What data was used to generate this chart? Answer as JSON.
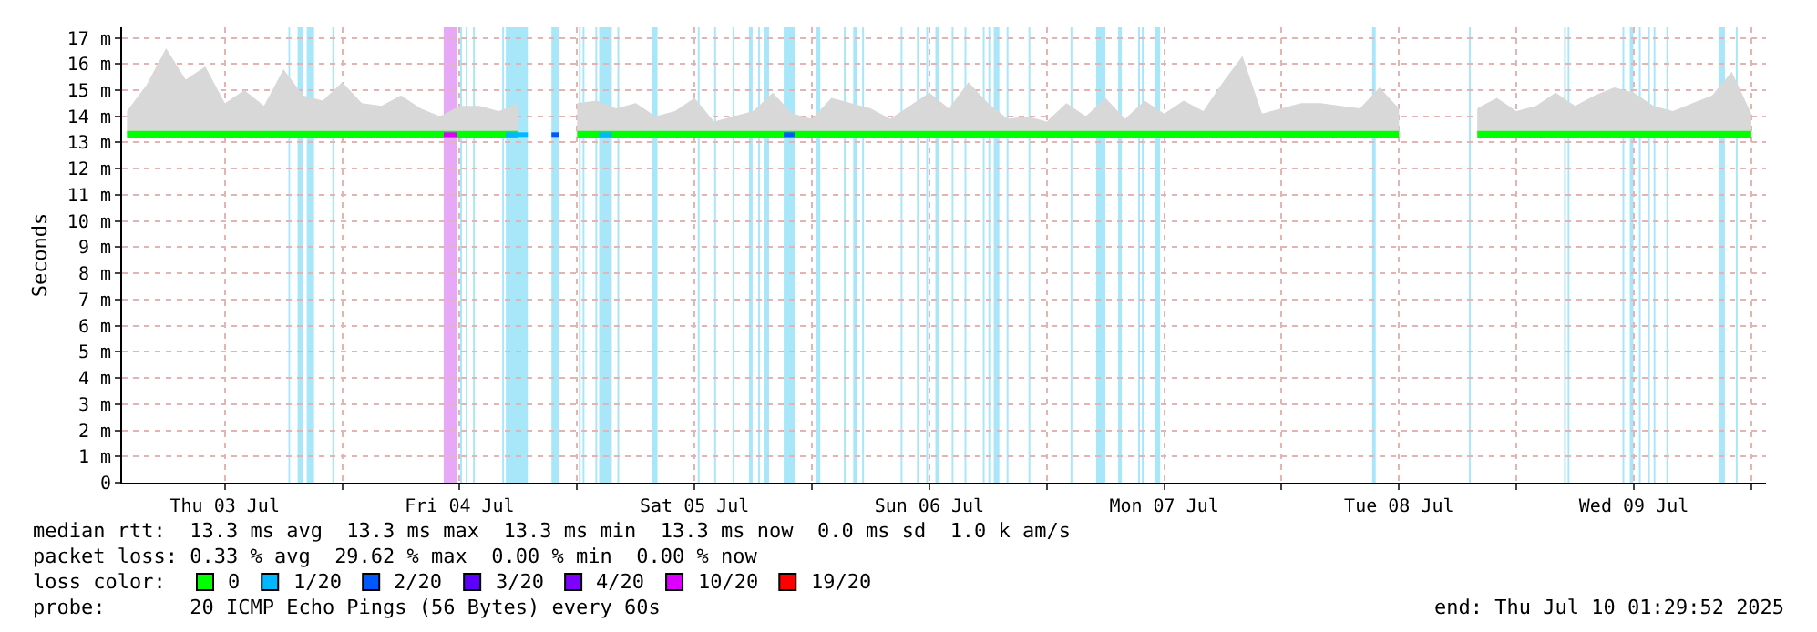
{
  "chart_data": {
    "type": "line",
    "ylabel": "Seconds",
    "legend_title": "loss color:",
    "legend": "bottom",
    "grid": true,
    "xlim": [
      "2025-07-03T01:30",
      "2025-07-10T01:30"
    ],
    "xticks": [
      {
        "value": "2025-07-03T12:00",
        "label": "Thu 03 Jul"
      },
      {
        "value": "2025-07-04T00:00",
        "label": null
      },
      {
        "value": "2025-07-04T12:00",
        "label": "Fri 04 Jul"
      },
      {
        "value": "2025-07-05T00:00",
        "label": null
      },
      {
        "value": "2025-07-05T12:00",
        "label": "Sat 05 Jul"
      },
      {
        "value": "2025-07-06T00:00",
        "label": null
      },
      {
        "value": "2025-07-06T12:00",
        "label": "Sun 06 Jul"
      },
      {
        "value": "2025-07-07T00:00",
        "label": null
      },
      {
        "value": "2025-07-07T12:00",
        "label": "Mon 07 Jul"
      },
      {
        "value": "2025-07-08T00:00",
        "label": null
      },
      {
        "value": "2025-07-08T12:00",
        "label": "Tue 08 Jul"
      },
      {
        "value": "2025-07-09T00:00",
        "label": null
      },
      {
        "value": "2025-07-09T12:00",
        "label": "Wed 09 Jul"
      },
      {
        "value": "2025-07-10T00:00",
        "label": null
      }
    ],
    "ylim": [
      0,
      17.4
    ],
    "yticks": [
      0,
      {
        "value": 1,
        "label": "1 m"
      },
      {
        "value": 2,
        "label": "2 m"
      },
      {
        "value": 3,
        "label": "3 m"
      },
      {
        "value": 4,
        "label": "4 m"
      },
      {
        "value": 5,
        "label": "5 m"
      },
      {
        "value": 6,
        "label": "6 m"
      },
      {
        "value": 7,
        "label": "7 m"
      },
      {
        "value": 8,
        "label": "8 m"
      },
      {
        "value": 9,
        "label": "9 m"
      },
      {
        "value": 10,
        "label": "10 m"
      },
      {
        "value": 11,
        "label": "11 m"
      },
      {
        "value": 12,
        "label": "12 m"
      },
      {
        "value": 13,
        "label": "13 m"
      },
      {
        "value": 14,
        "label": "14 m"
      },
      {
        "value": 15,
        "label": "15 m"
      },
      {
        "value": 16,
        "label": "16 m"
      },
      {
        "value": 17,
        "label": "17 m"
      }
    ],
    "series": [
      {
        "name": "0",
        "color": "#00ff00",
        "x": [
          "2025-07-03T02:00",
          "2025-07-03T04:00",
          "2025-07-03T06:00",
          "2025-07-03T08:00",
          "2025-07-03T10:00",
          "2025-07-03T12:00",
          "2025-07-03T14:00",
          "2025-07-03T16:00",
          "2025-07-03T18:00",
          "2025-07-03T20:00",
          "2025-07-03T22:00",
          "2025-07-04T00:00",
          "2025-07-04T02:00",
          "2025-07-04T04:00",
          "2025-07-04T06:00",
          "2025-07-04T08:00",
          "2025-07-04T10:00",
          "2025-07-04T12:00",
          "2025-07-04T14:00",
          "2025-07-04T16:00",
          "2025-07-04T18:00",
          "2025-07-04T20:00",
          "2025-07-04T22:00",
          "2025-07-05T00:00",
          "2025-07-05T02:00",
          "2025-07-05T04:00",
          "2025-07-05T06:00",
          "2025-07-05T08:00",
          "2025-07-05T10:00",
          "2025-07-05T12:00",
          "2025-07-05T14:00",
          "2025-07-05T16:00",
          "2025-07-05T18:00",
          "2025-07-05T20:00",
          "2025-07-05T22:00",
          "2025-07-06T00:00",
          "2025-07-06T02:00",
          "2025-07-06T04:00",
          "2025-07-06T06:00",
          "2025-07-06T08:00",
          "2025-07-06T10:00",
          "2025-07-06T12:00",
          "2025-07-06T14:00",
          "2025-07-06T16:00",
          "2025-07-06T18:00",
          "2025-07-06T20:00",
          "2025-07-06T22:00",
          "2025-07-07T00:00",
          "2025-07-07T02:00",
          "2025-07-07T04:00",
          "2025-07-07T06:00",
          "2025-07-07T08:00",
          "2025-07-07T10:00",
          "2025-07-07T12:00",
          "2025-07-07T14:00",
          "2025-07-07T16:00",
          "2025-07-07T18:00",
          "2025-07-07T20:00",
          "2025-07-07T22:00",
          "2025-07-08T00:00",
          "2025-07-08T02:00",
          "2025-07-08T04:00",
          "2025-07-08T06:00",
          "2025-07-08T08:00",
          "2025-07-08T10:00",
          "2025-07-08T12:00",
          "2025-07-08T14:00",
          "2025-07-08T16:00",
          "2025-07-08T18:00",
          "2025-07-08T20:00",
          "2025-07-08T22:00",
          "2025-07-09T00:00",
          "2025-07-09T02:00",
          "2025-07-09T04:00",
          "2025-07-09T06:00",
          "2025-07-09T08:00",
          "2025-07-09T10:00",
          "2025-07-09T12:00",
          "2025-07-09T14:00",
          "2025-07-09T16:00",
          "2025-07-09T18:00",
          "2025-07-09T20:00",
          "2025-07-09T22:00",
          "2025-07-10T00:00"
        ],
        "values": [
          13.3,
          13.3,
          13.3,
          13.3,
          13.3,
          13.3,
          13.3,
          13.3,
          13.3,
          13.3,
          13.3,
          13.3,
          13.3,
          13.3,
          13.3,
          13.3,
          13.3,
          13.3,
          13.3,
          13.3,
          13.3,
          null,
          null,
          13.3,
          13.3,
          13.3,
          13.3,
          13.3,
          13.3,
          13.3,
          13.3,
          13.3,
          13.3,
          13.3,
          13.3,
          13.3,
          13.3,
          13.3,
          13.3,
          13.3,
          13.3,
          13.3,
          13.3,
          13.3,
          13.3,
          13.3,
          13.3,
          13.3,
          13.3,
          13.3,
          13.3,
          13.3,
          13.3,
          13.3,
          13.3,
          13.3,
          13.3,
          13.3,
          13.3,
          13.3,
          13.3,
          13.3,
          13.3,
          13.3,
          13.3,
          13.3,
          null,
          null,
          null,
          13.3,
          13.3,
          13.3,
          13.3,
          13.3,
          13.3,
          13.3,
          13.3,
          13.3,
          13.3,
          13.3,
          13.3,
          13.3,
          13.3,
          13.3
        ],
        "lower": [
          13.3,
          13.3,
          13.3,
          13.3,
          13.3,
          13.3,
          13.3,
          13.3,
          13.3,
          13.3,
          13.3,
          13.3,
          13.3,
          13.3,
          13.3,
          13.3,
          13.3,
          13.3,
          13.3,
          13.3,
          13.3,
          null,
          null,
          13.3,
          13.3,
          13.3,
          13.3,
          13.3,
          13.3,
          13.3,
          13.3,
          13.3,
          13.3,
          13.3,
          13.3,
          13.3,
          13.3,
          13.3,
          13.3,
          13.3,
          13.3,
          13.3,
          13.3,
          13.3,
          13.3,
          13.3,
          13.3,
          13.3,
          13.3,
          13.3,
          13.3,
          13.3,
          13.3,
          13.3,
          13.3,
          13.3,
          13.3,
          13.3,
          13.3,
          13.3,
          13.3,
          13.3,
          13.3,
          13.3,
          13.3,
          13.3,
          null,
          null,
          null,
          13.3,
          13.3,
          13.3,
          13.3,
          13.3,
          13.3,
          13.3,
          13.3,
          13.3,
          13.3,
          13.3,
          13.3,
          13.3,
          13.3,
          13.3
        ],
        "upper": [
          14.2,
          15.2,
          16.6,
          15.4,
          15.9,
          14.5,
          15.0,
          14.4,
          15.8,
          14.8,
          14.6,
          15.3,
          14.5,
          14.4,
          14.8,
          14.3,
          14.0,
          14.4,
          14.4,
          14.2,
          14.5,
          null,
          null,
          14.5,
          14.6,
          14.3,
          14.5,
          14.0,
          14.2,
          14.7,
          13.8,
          14.0,
          14.2,
          14.9,
          14.1,
          13.9,
          14.7,
          14.5,
          14.3,
          13.9,
          14.4,
          14.9,
          14.3,
          15.3,
          14.5,
          13.9,
          14.0,
          13.8,
          14.5,
          14.0,
          14.7,
          13.9,
          14.6,
          14.1,
          14.6,
          14.2,
          15.3,
          16.3,
          14.1,
          14.3,
          14.5,
          14.5,
          14.4,
          14.3,
          15.1,
          14.3,
          null,
          null,
          null,
          14.3,
          14.7,
          14.2,
          14.4,
          14.9,
          14.4,
          14.8,
          15.1,
          14.9,
          14.4,
          14.2,
          14.5,
          14.8,
          15.7,
          14.1
        ]
      },
      {
        "name": "1/20",
        "color": "#00b8ff",
        "x": [
          "2025-07-04T16:43",
          "2025-07-04T18:58",
          "2025-07-04T18:59",
          "2025-07-05T02:15",
          "2025-07-05T03:33"
        ],
        "values": [
          13.3,
          13.3,
          null,
          13.3,
          13.3
        ]
      },
      {
        "name": "2/20",
        "color": "#0059ff",
        "x": [
          "2025-07-04T21:23",
          "2025-07-04T22:08",
          "2025-07-04T22:09",
          "2025-07-05T21:07",
          "2025-07-05T22:14"
        ],
        "values": [
          13.3,
          13.3,
          null,
          13.3,
          13.3
        ]
      },
      {
        "name": "3/20",
        "color": "#5e00ff"
      },
      {
        "name": "4/20",
        "color": "#7e00ff"
      },
      {
        "name": "10/20",
        "color": "#dd00ff",
        "x": [
          "2025-07-04T10:22",
          "2025-07-04T11:41"
        ],
        "values": [
          13.3,
          13.3
        ]
      },
      {
        "name": "19/20",
        "color": "#ff0000"
      }
    ],
    "bands": [
      {
        "axis": "x",
        "from": "2025-07-03T18:30",
        "to": "2025-07-03T18:40",
        "color": "#a8e6fa"
      },
      {
        "axis": "x",
        "from": "2025-07-03T19:26",
        "to": "2025-07-03T20:00",
        "color": "#a8e6fa"
      },
      {
        "axis": "x",
        "from": "2025-07-03T20:22",
        "to": "2025-07-03T21:07",
        "color": "#a8e6fa"
      },
      {
        "axis": "x",
        "from": "2025-07-03T22:59",
        "to": "2025-07-03T23:10",
        "color": "#a8e6fa"
      },
      {
        "axis": "x",
        "from": "2025-07-04T10:22",
        "to": "2025-07-04T11:41",
        "color": "#e8a8f8"
      },
      {
        "axis": "x",
        "from": "2025-07-04T12:03",
        "to": "2025-07-04T12:14",
        "color": "#a8e6fa"
      },
      {
        "axis": "x",
        "from": "2025-07-04T12:37",
        "to": "2025-07-04T12:48",
        "color": "#a8e6fa"
      },
      {
        "axis": "x",
        "from": "2025-07-04T13:22",
        "to": "2025-07-04T13:33",
        "color": "#a8e6fa"
      },
      {
        "axis": "x",
        "from": "2025-07-04T16:21",
        "to": "2025-07-04T16:32",
        "color": "#a8e6fa"
      },
      {
        "axis": "x",
        "from": "2025-07-04T16:43",
        "to": "2025-07-04T18:58",
        "color": "#a8e6fa"
      },
      {
        "axis": "x",
        "from": "2025-07-04T21:23",
        "to": "2025-07-04T22:08",
        "color": "#a8e6fa"
      },
      {
        "axis": "x",
        "from": "2025-07-05T00:11",
        "to": "2025-07-05T00:22",
        "color": "#a8e6fa"
      },
      {
        "axis": "x",
        "from": "2025-07-05T00:34",
        "to": "2025-07-05T00:45",
        "color": "#a8e6fa"
      },
      {
        "axis": "x",
        "from": "2025-07-05T01:52",
        "to": "2025-07-05T02:03",
        "color": "#a8e6fa"
      },
      {
        "axis": "x",
        "from": "2025-07-05T02:15",
        "to": "2025-07-05T03:33",
        "color": "#a8e6fa"
      },
      {
        "axis": "x",
        "from": "2025-07-05T04:07",
        "to": "2025-07-05T04:18",
        "color": "#a8e6fa"
      },
      {
        "axis": "x",
        "from": "2025-07-05T07:40",
        "to": "2025-07-05T08:13",
        "color": "#a8e6fa"
      },
      {
        "axis": "x",
        "from": "2025-07-05T12:20",
        "to": "2025-07-05T12:31",
        "color": "#a8e6fa"
      },
      {
        "axis": "x",
        "from": "2025-07-05T14:01",
        "to": "2025-07-05T14:12",
        "color": "#a8e6fa"
      },
      {
        "axis": "x",
        "from": "2025-07-05T15:53",
        "to": "2025-07-05T16:04",
        "color": "#a8e6fa"
      },
      {
        "axis": "x",
        "from": "2025-07-05T17:34",
        "to": "2025-07-05T17:56",
        "color": "#a8e6fa"
      },
      {
        "axis": "x",
        "from": "2025-07-05T18:30",
        "to": "2025-07-05T18:41",
        "color": "#a8e6fa"
      },
      {
        "axis": "x",
        "from": "2025-07-05T19:04",
        "to": "2025-07-05T19:37",
        "color": "#a8e6fa"
      },
      {
        "axis": "x",
        "from": "2025-07-05T21:07",
        "to": "2025-07-05T22:14",
        "color": "#a8e6fa"
      },
      {
        "axis": "x",
        "from": "2025-07-06T00:28",
        "to": "2025-07-06T00:51",
        "color": "#a8e6fa"
      },
      {
        "axis": "x",
        "from": "2025-07-06T03:16",
        "to": "2025-07-06T03:27",
        "color": "#a8e6fa"
      },
      {
        "axis": "x",
        "from": "2025-07-06T04:13",
        "to": "2025-07-06T04:35",
        "color": "#a8e6fa"
      },
      {
        "axis": "x",
        "from": "2025-07-06T05:08",
        "to": "2025-07-06T05:19",
        "color": "#a8e6fa"
      },
      {
        "axis": "x",
        "from": "2025-07-06T09:04",
        "to": "2025-07-06T09:15",
        "color": "#a8e6fa"
      },
      {
        "axis": "x",
        "from": "2025-07-06T10:44",
        "to": "2025-07-06T10:55",
        "color": "#a8e6fa"
      },
      {
        "axis": "x",
        "from": "2025-07-06T11:41",
        "to": "2025-07-06T11:52",
        "color": "#a8e6fa"
      },
      {
        "axis": "x",
        "from": "2025-07-06T12:37",
        "to": "2025-07-06T12:59",
        "color": "#a8e6fa"
      },
      {
        "axis": "x",
        "from": "2025-07-06T14:17",
        "to": "2025-07-06T14:28",
        "color": "#a8e6fa"
      },
      {
        "axis": "x",
        "from": "2025-07-06T15:36",
        "to": "2025-07-06T15:47",
        "color": "#a8e6fa"
      },
      {
        "axis": "x",
        "from": "2025-07-06T17:28",
        "to": "2025-07-06T17:39",
        "color": "#a8e6fa"
      },
      {
        "axis": "x",
        "from": "2025-07-06T18:02",
        "to": "2025-07-06T18:13",
        "color": "#a8e6fa"
      },
      {
        "axis": "x",
        "from": "2025-07-06T18:35",
        "to": "2025-07-06T19:09",
        "color": "#a8e6fa"
      },
      {
        "axis": "x",
        "from": "2025-07-06T19:54",
        "to": "2025-07-06T20:05",
        "color": "#a8e6fa"
      },
      {
        "axis": "x",
        "from": "2025-07-06T22:08",
        "to": "2025-07-06T22:19",
        "color": "#a8e6fa"
      },
      {
        "axis": "x",
        "from": "2025-07-07T02:26",
        "to": "2025-07-07T02:37",
        "color": "#a8e6fa"
      },
      {
        "axis": "x",
        "from": "2025-07-07T05:03",
        "to": "2025-07-07T05:59",
        "color": "#a8e6fa"
      },
      {
        "axis": "x",
        "from": "2025-07-07T07:17",
        "to": "2025-07-07T07:40",
        "color": "#a8e6fa"
      },
      {
        "axis": "x",
        "from": "2025-07-07T09:20",
        "to": "2025-07-07T09:31",
        "color": "#a8e6fa"
      },
      {
        "axis": "x",
        "from": "2025-07-07T09:43",
        "to": "2025-07-07T09:54",
        "color": "#a8e6fa"
      },
      {
        "axis": "x",
        "from": "2025-07-07T11:02",
        "to": "2025-07-07T11:35",
        "color": "#a8e6fa"
      },
      {
        "axis": "x",
        "from": "2025-07-08T09:15",
        "to": "2025-07-08T09:37",
        "color": "#a8e6fa"
      },
      {
        "axis": "x",
        "from": "2025-07-08T19:09",
        "to": "2025-07-08T19:20",
        "color": "#a8e6fa"
      },
      {
        "axis": "x",
        "from": "2025-07-09T04:52",
        "to": "2025-07-09T05:03",
        "color": "#a8e6fa"
      },
      {
        "axis": "x",
        "from": "2025-07-09T05:14",
        "to": "2025-07-09T05:25",
        "color": "#a8e6fa"
      },
      {
        "axis": "x",
        "from": "2025-07-09T10:50",
        "to": "2025-07-09T11:01",
        "color": "#a8e6fa"
      },
      {
        "axis": "x",
        "from": "2025-07-09T11:35",
        "to": "2025-07-09T11:57",
        "color": "#a8e6fa"
      },
      {
        "axis": "x",
        "from": "2025-07-09T12:31",
        "to": "2025-07-09T12:42",
        "color": "#a8e6fa"
      },
      {
        "axis": "x",
        "from": "2025-07-09T13:27",
        "to": "2025-07-09T13:38",
        "color": "#a8e6fa"
      },
      {
        "axis": "x",
        "from": "2025-07-09T14:01",
        "to": "2025-07-09T14:12",
        "color": "#a8e6fa"
      },
      {
        "axis": "x",
        "from": "2025-07-09T15:19",
        "to": "2025-07-09T15:30",
        "color": "#a8e6fa"
      },
      {
        "axis": "x",
        "from": "2025-07-09T20:44",
        "to": "2025-07-09T21:18",
        "color": "#a8e6fa"
      },
      {
        "axis": "x",
        "from": "2025-07-09T22:25",
        "to": "2025-07-09T22:36",
        "color": "#a8e6fa"
      }
    ],
    "annotations": [
      "median rtt:  13.3 ms avg  13.3 ms max  13.3 ms min  13.3 ms now  0.0 ms sd  1.0 k am/s",
      "packet loss: 0.33 % avg  29.62 % max  0.00 % min  0.00 % now",
      "probe:       20 ICMP Echo Pings (56 Bytes) every 60s",
      "end: Thu Jul 10 01:29:52 2025"
    ]
  }
}
